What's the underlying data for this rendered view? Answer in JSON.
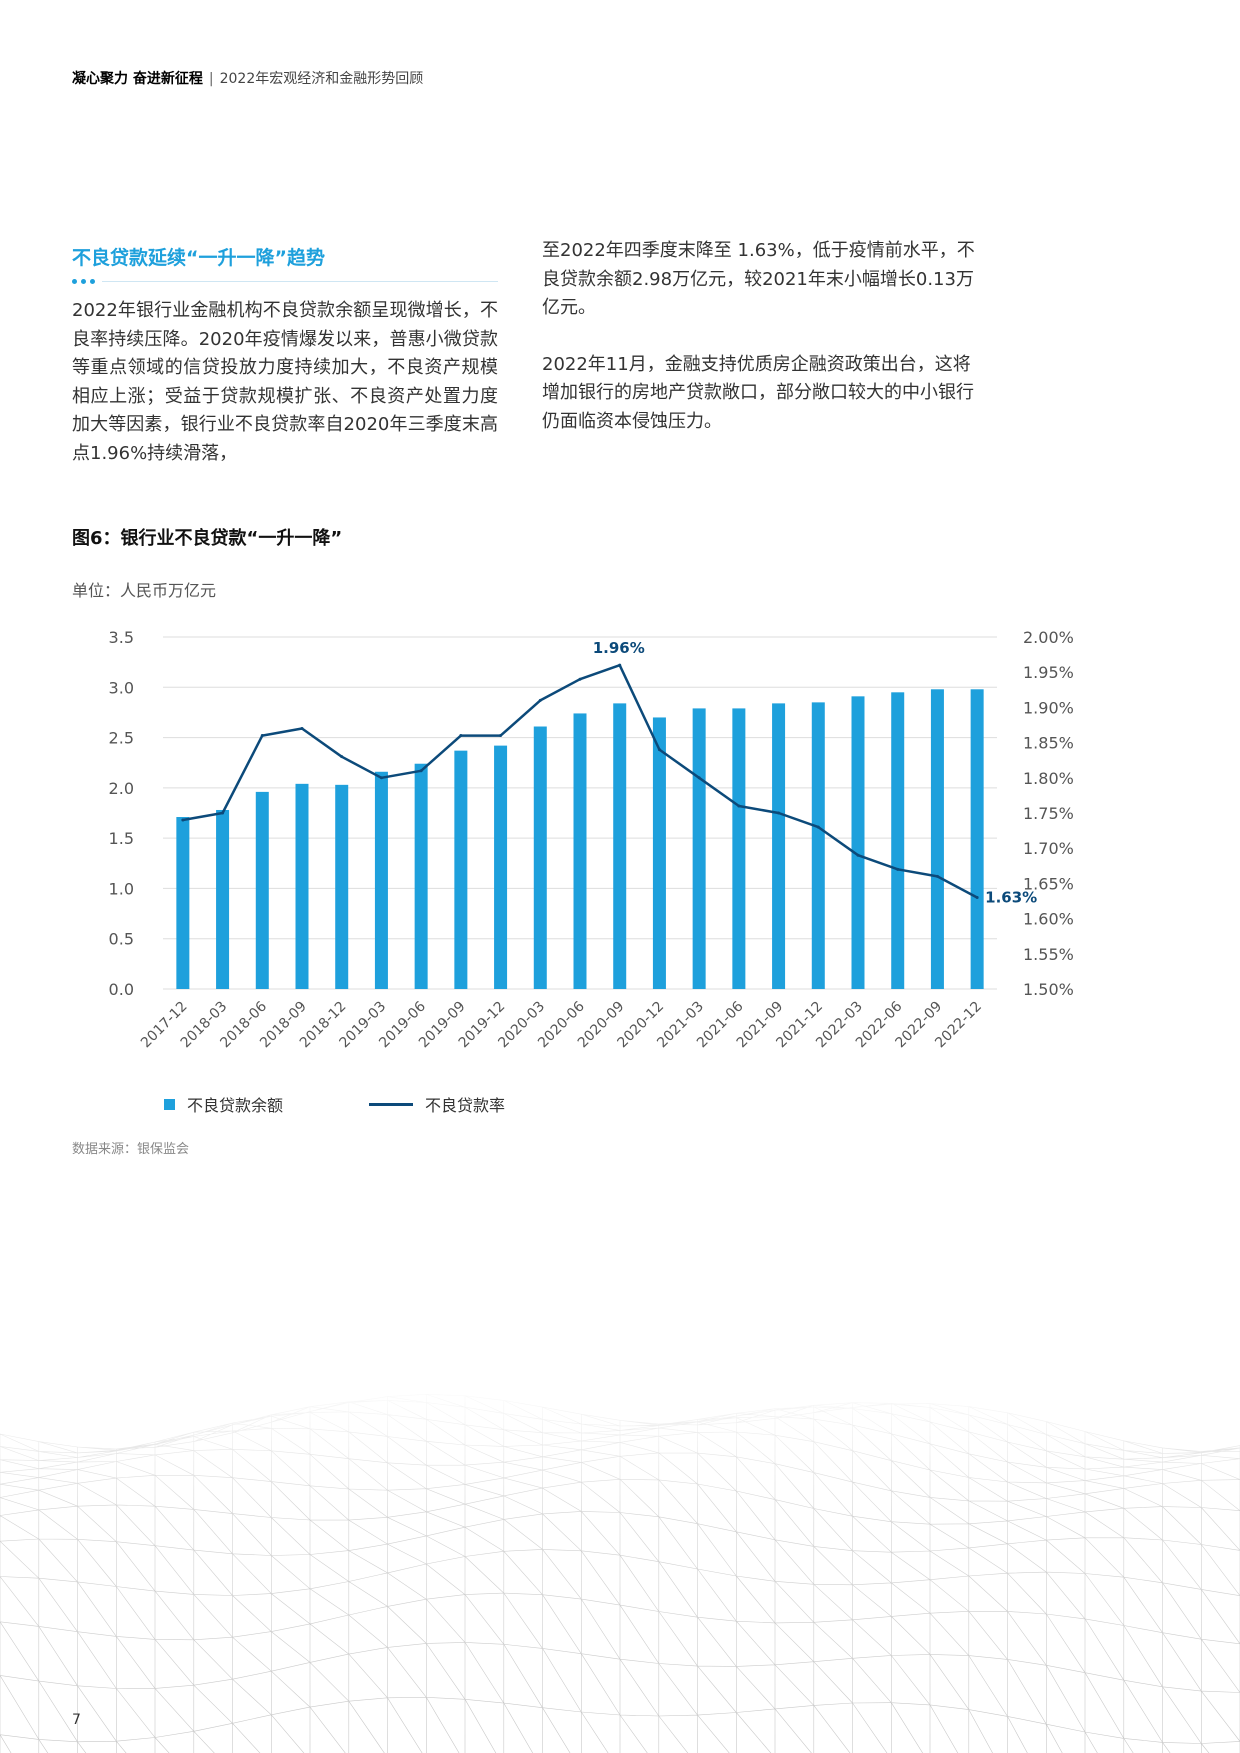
{
  "header": {
    "title": "凝心聚力 奋进新征程",
    "separator": "|",
    "subtitle": "2022年宏观经济和金融形势回顾"
  },
  "section": {
    "title": "不良贷款延续“一升一降”趋势"
  },
  "body": {
    "col1": "2022年银行业金融机构不良贷款余额呈现微增长，不良率持续压降。2020年疫情爆发以来，普惠小微贷款等重点领域的信贷投放力度持续加大，不良资产规模相应上涨；受益于贷款规模扩张、不良资产处置力度加大等因素，银行业不良贷款率自2020年三季度末高点1.96%持续滑落，",
    "col2_p1": "至2022年四季度末降至 1.63%，低于疫情前水平，不良贷款余额2.98万亿元，较2021年末小幅增长0.13万亿元。",
    "col2_p2": "2022年11月，金融支持优质房企融资政策出台，这将增加银行的房地产贷款敞口，部分敞口较大的中小银行仍面临资本侵蚀压力。"
  },
  "figure": {
    "title": "图6：银行业不良贷款“一升一降”",
    "unit": "单位：人民币万亿元",
    "source": "数据来源：银保监会"
  },
  "chart_data": {
    "type": "bar",
    "categories": [
      "2017-12",
      "2018-03",
      "2018-06",
      "2018-09",
      "2018-12",
      "2019-03",
      "2019-06",
      "2019-09",
      "2019-12",
      "2020-03",
      "2020-06",
      "2020-09",
      "2020-12",
      "2021-03",
      "2021-06",
      "2021-09",
      "2021-12",
      "2022-03",
      "2022-06",
      "2022-09",
      "2022-12"
    ],
    "series": [
      {
        "name": "不良贷款余额",
        "type": "bar",
        "axis": "left",
        "color": "#1ea0dc",
        "values": [
          1.71,
          1.78,
          1.96,
          2.04,
          2.03,
          2.16,
          2.24,
          2.37,
          2.42,
          2.61,
          2.74,
          2.84,
          2.7,
          2.79,
          2.79,
          2.84,
          2.85,
          2.91,
          2.95,
          2.98,
          2.98
        ]
      },
      {
        "name": "不良贷款率",
        "type": "line",
        "axis": "right",
        "color": "#0c4a7a",
        "values": [
          1.74,
          1.75,
          1.86,
          1.87,
          1.83,
          1.8,
          1.81,
          1.86,
          1.86,
          1.91,
          1.94,
          1.96,
          1.84,
          1.8,
          1.76,
          1.75,
          1.73,
          1.69,
          1.67,
          1.66,
          1.63
        ]
      }
    ],
    "y_left": {
      "min": 0,
      "max": 3.5,
      "ticks": [
        "3.5",
        "3.0",
        "2.5",
        "2.0",
        "1.5",
        "1.0",
        "0.5",
        "0.0"
      ]
    },
    "y_right": {
      "min": 1.5,
      "max": 2.0,
      "ticks": [
        "2.00%",
        "1.95%",
        "1.90%",
        "1.85%",
        "1.80%",
        "1.75%",
        "1.70%",
        "1.65%",
        "1.60%",
        "1.55%",
        "1.50%"
      ]
    },
    "annotations": [
      {
        "category": "2020-09",
        "label": "1.96%"
      },
      {
        "category": "2022-12",
        "label": "1.63%"
      }
    ],
    "legend": "bottom-left",
    "grid": true
  },
  "page_number": "7"
}
